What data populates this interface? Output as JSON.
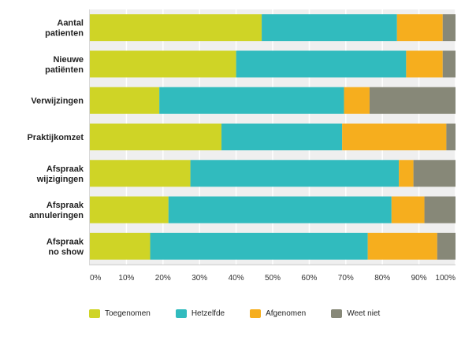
{
  "chart_data": {
    "type": "bar",
    "orientation": "horizontal",
    "stacked": true,
    "title": "",
    "xlabel": "",
    "ylabel": "",
    "xlim": [
      0,
      100
    ],
    "grid": true,
    "legend_position": "bottom",
    "categories": [
      [
        "Aantal",
        "patienten"
      ],
      [
        "Nieuwe",
        "patiënten"
      ],
      [
        "Verwijzingen"
      ],
      [
        "Praktijkomzet"
      ],
      [
        "Afspraak",
        "wijzigingen"
      ],
      [
        "Afspraak",
        "annuleringen"
      ],
      [
        "Afspraak",
        "no show"
      ]
    ],
    "x_ticks": [
      "0%",
      "10%",
      "20%",
      "30%",
      "40%",
      "50%",
      "60%",
      "70%",
      "80%",
      "90%",
      "100%"
    ],
    "series": [
      {
        "name": "Toegenomen",
        "color": "#cfd426",
        "values": [
          47,
          40,
          19,
          36,
          27.5,
          21.5,
          16.5
        ]
      },
      {
        "name": "Hetzelfde",
        "color": "#31bbbe",
        "values": [
          37,
          46.5,
          50.5,
          33,
          57,
          61,
          59.5
        ]
      },
      {
        "name": "Afgenomen",
        "color": "#f6ae1e",
        "values": [
          12.5,
          10,
          7,
          28.5,
          4,
          9,
          19
        ]
      },
      {
        "name": "Weet niet",
        "color": "#878878",
        "values": [
          3.5,
          3.5,
          23.5,
          2.5,
          11.5,
          8.5,
          5
        ]
      }
    ]
  }
}
